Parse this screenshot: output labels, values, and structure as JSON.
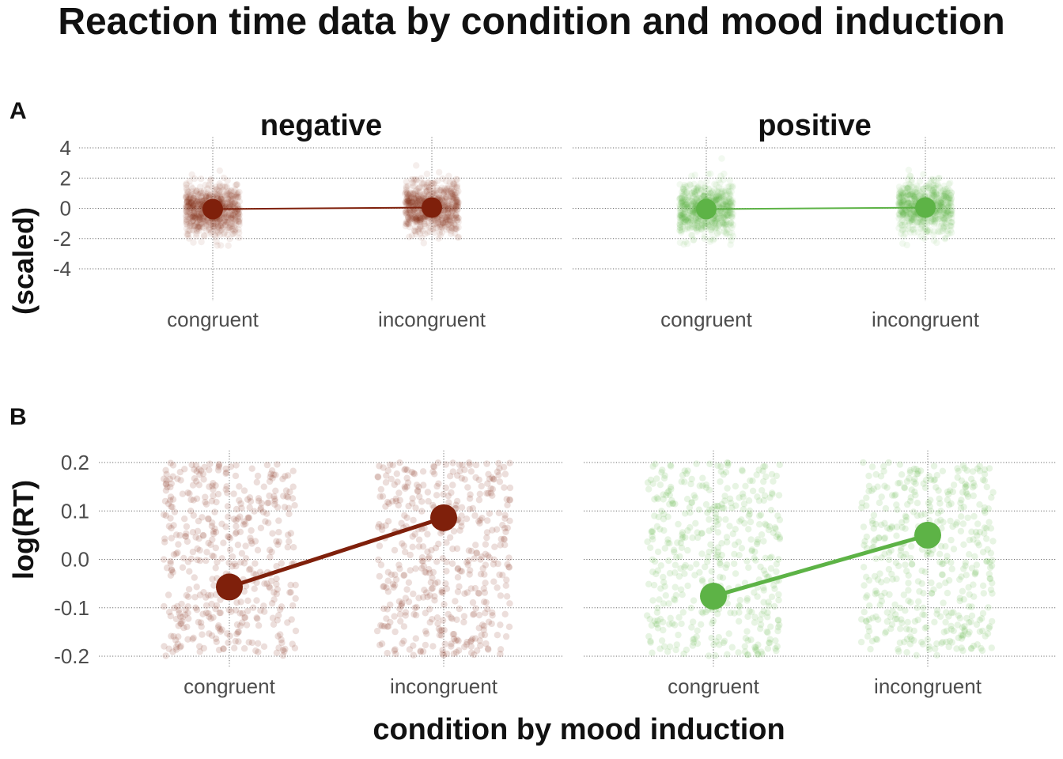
{
  "title": "Reaction time data by condition and mood induction",
  "x_axis_title": "condition by mood induction",
  "colors": {
    "negative": "#7f200b",
    "positive": "#5db346"
  },
  "chart_data": [
    {
      "panel_label": "A",
      "type": "scatter",
      "ylabel": "(scaled)",
      "ylim": [
        -6.3,
        4.4
      ],
      "y_ticks": [
        "4",
        "2",
        "0",
        "-2",
        "-4"
      ],
      "y_tick_values": [
        4,
        2,
        0,
        -2,
        -4
      ],
      "grid": true,
      "facets": [
        {
          "label": "negative",
          "categories": [
            "congruent",
            "incongruent"
          ],
          "series": [
            {
              "x": [
                "congruent",
                "incongruent"
              ],
              "means": [
                -0.05,
                0.05
              ],
              "spread": [
                -2.5,
                3.6
              ]
            }
          ]
        },
        {
          "label": "positive",
          "categories": [
            "congruent",
            "incongruent"
          ],
          "series": [
            {
              "x": [
                "congruent",
                "incongruent"
              ],
              "means": [
                -0.05,
                0.05
              ],
              "spread": [
                -2.5,
                3.6
              ]
            }
          ]
        }
      ]
    },
    {
      "panel_label": "B",
      "type": "scatter",
      "ylabel": "log(RT)",
      "ylim": [
        -0.215,
        0.215
      ],
      "y_ticks": [
        "0.2",
        "0.1",
        "0.0",
        "-0.1",
        "-0.2"
      ],
      "y_tick_values": [
        0.2,
        0.1,
        0.0,
        -0.1,
        -0.2
      ],
      "grid": true,
      "facets": [
        {
          "label": "",
          "categories": [
            "congruent",
            "incongruent"
          ],
          "series": [
            {
              "x": [
                "congruent",
                "incongruent"
              ],
              "means": [
                -0.057,
                0.086
              ],
              "spread": [
                -0.2,
                0.2
              ]
            }
          ]
        },
        {
          "label": "",
          "categories": [
            "congruent",
            "incongruent"
          ],
          "series": [
            {
              "x": [
                "congruent",
                "incongruent"
              ],
              "means": [
                -0.076,
                0.05
              ],
              "spread": [
                -0.2,
                0.2
              ]
            }
          ]
        }
      ]
    }
  ]
}
